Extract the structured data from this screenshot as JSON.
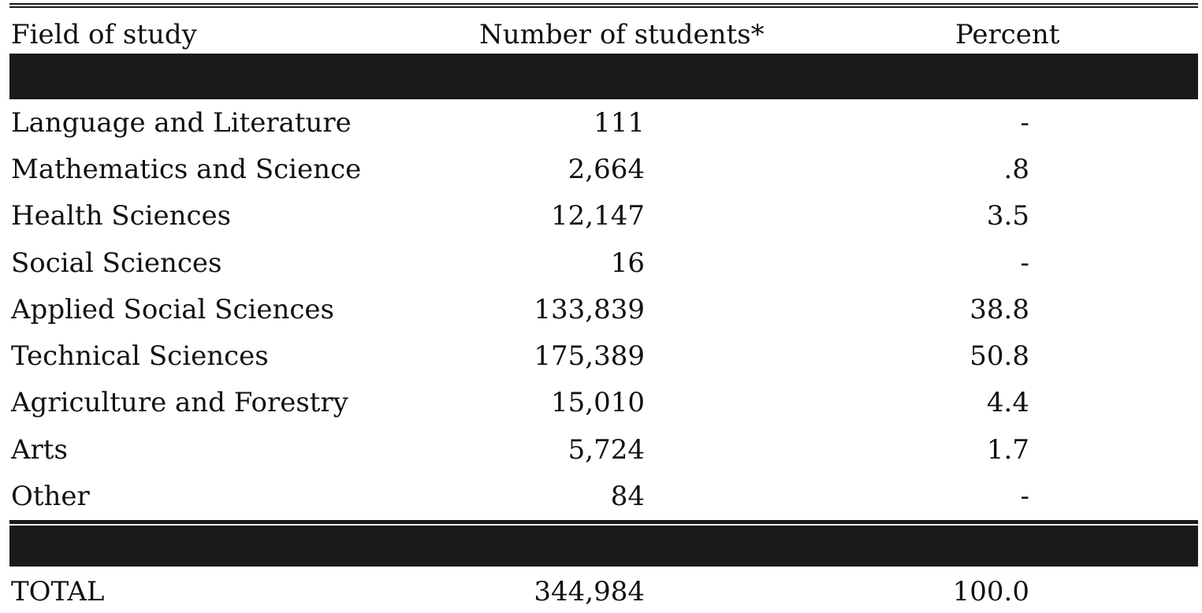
{
  "table": {
    "headers": {
      "field": "Field of study",
      "students": "Number of students*",
      "percent": "Percent"
    },
    "rows": [
      {
        "field": "Language and Literature",
        "students": "111",
        "percent": "-"
      },
      {
        "field": "Mathematics and Science",
        "students": "2,664",
        "percent": ".8"
      },
      {
        "field": "Health Sciences",
        "students": "12,147",
        "percent": "3.5"
      },
      {
        "field": "Social Sciences",
        "students": "16",
        "percent": "-"
      },
      {
        "field": "Applied Social Sciences",
        "students": "133,839",
        "percent": "38.8"
      },
      {
        "field": "Technical Sciences",
        "students": "175,389",
        "percent": "50.8"
      },
      {
        "field": "Agriculture and Forestry",
        "students": "15,010",
        "percent": "4.4"
      },
      {
        "field": "Arts",
        "students": "5,724",
        "percent": "1.7"
      },
      {
        "field": "Other",
        "students": "84",
        "percent": "-"
      }
    ],
    "total": {
      "field": "TOTAL",
      "students": "344,984",
      "percent": "100.0"
    }
  }
}
